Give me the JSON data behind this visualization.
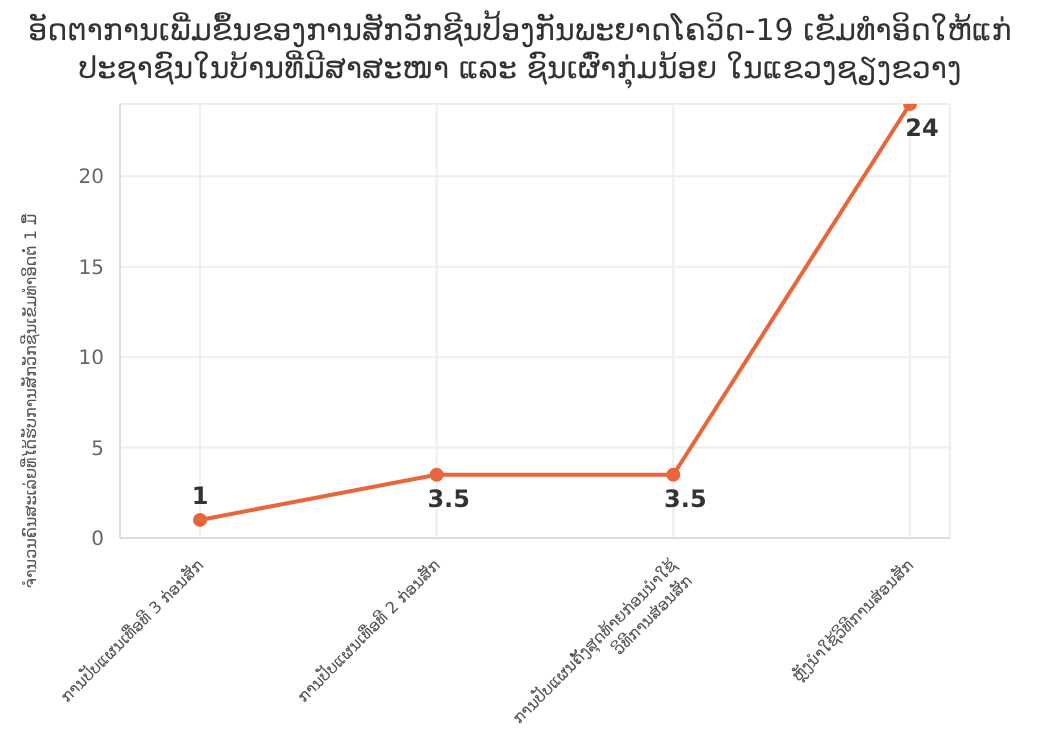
{
  "chart_data": {
    "type": "line",
    "title": "ອັດຕາການເພີ່ມຂຶ້ນຂອງການສັກວັກຊີນປ້ອງກັນພະຍາດໂຄວິດ-19 ເຂັມທຳອິດໃຫ້ແກ່ ປະຊາຊົນໃນບ້ານທີ່ມີສາສະໜາ ແລະ ຊົນເຜົ່າກຸ່ມນ້ອຍ ໃນແຂວງຊຽງຂວາງ",
    "ylabel": "ຈຳນວນຄົນສະເລ່ຍທີ່ໄດ້ຮັບການສັກວັກຊີນເຂັມທຳອິດຕໍ່ 1 ມື້",
    "categories": [
      "ການປັບແຜນເທື່ອທີ 3 ກ່ອນສັກ",
      "ການປັບແຜນເທື່ອທີ 2 ກ່ອນສັກ",
      "ການປັບແຜນຄັ້ງສຸດທ້າຍກ່ອນນຳໃຊ້ວິທີການສ່ອນສັກ",
      "ຫຼັງນຳໃຊ້ວິທີການສ່ອນສັກ"
    ],
    "values": [
      1,
      3.5,
      3.5,
      24
    ],
    "color": "#e8663a",
    "ylim": [
      0,
      24
    ],
    "yticks": [
      0,
      5,
      10,
      15,
      20
    ],
    "grid": true,
    "marker": "circle",
    "data_labels": true
  }
}
